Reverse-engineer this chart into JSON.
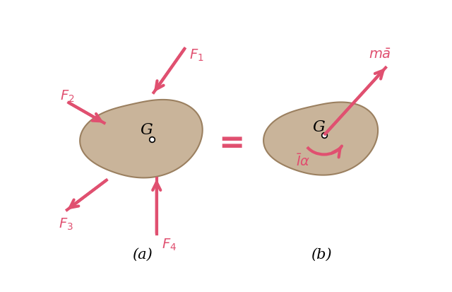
{
  "body_color": "#C9B49A",
  "body_edge_color": "#9B8060",
  "arrow_color": "#E05070",
  "text_color": "#E05070",
  "label_color": "#000000",
  "equal_color": "#E05070",
  "background_color": "#FFFFFF",
  "fig_label_a": "(a)",
  "fig_label_b": "(b)",
  "G_label": "G",
  "lw_arrow": 3.0,
  "lw_body": 1.5
}
